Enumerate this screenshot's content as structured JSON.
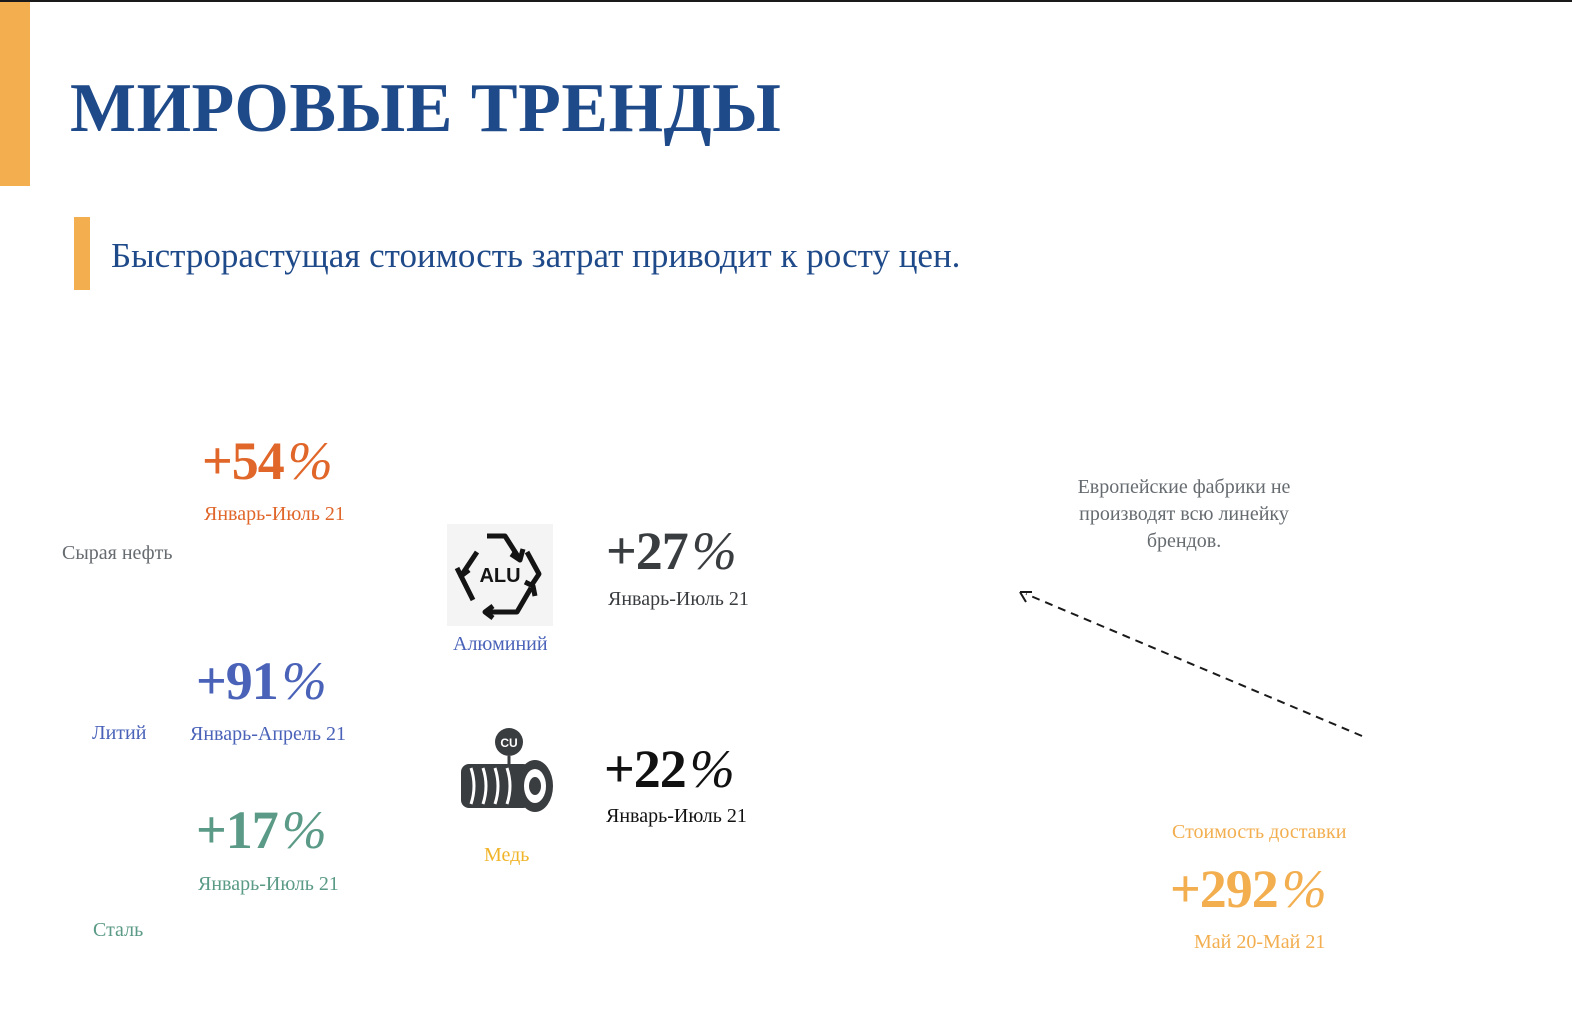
{
  "title": "МИРОВЫЕ ТРЕНДЫ",
  "subtitle": "Быстрорастущая стоимость затрат приводит к росту цен.",
  "colors": {
    "accent_orange": "#f2ae4f",
    "title_blue": "#1f4a8a",
    "oil": "#e0662a",
    "lithium": "#4a63b8",
    "steel": "#5a9a86",
    "aluminum_value": "#3a3d40",
    "copper_label": "#f0b429",
    "shipping": "#f2ae4f",
    "note_gray": "#666b70"
  },
  "metrics": {
    "oil": {
      "label": "Сырая нефть",
      "value": "+54",
      "unit": "%",
      "period": "Январь-Июль 21"
    },
    "lithium": {
      "label": "Литий",
      "value": "+91",
      "unit": "%",
      "period": "Январь-Апрель 21"
    },
    "steel": {
      "label": "Сталь",
      "value": "+17",
      "unit": "%",
      "period": "Январь-Июль 21"
    },
    "aluminum": {
      "label": "Алюминий",
      "icon_text": "ALU",
      "value": "+27",
      "unit": "%",
      "period": "Январь-Июль 21",
      "icon": "aluminum-recycle-icon"
    },
    "copper": {
      "label": "Медь",
      "icon_text": "CU",
      "value": "+22",
      "unit": "%",
      "period": "Январь-Июль 21",
      "icon": "copper-spool-icon"
    },
    "shipping": {
      "label": "Стоимость доставки",
      "value": "+292",
      "unit": "%",
      "period": "Май 20-Май 21"
    }
  },
  "note": "Европейские фабрики не производят всю линейку брендов."
}
